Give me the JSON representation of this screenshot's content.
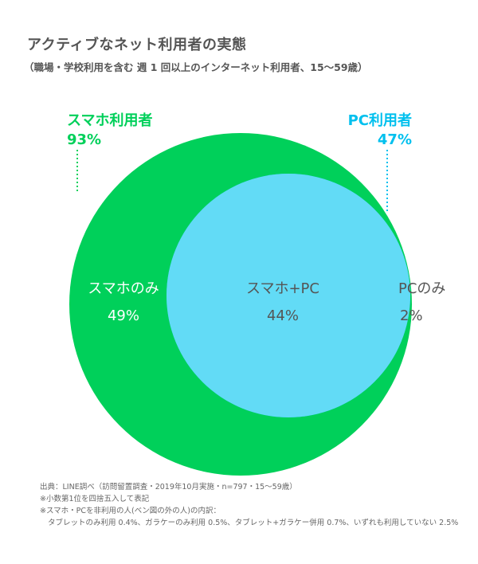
{
  "title": "アクティブなネット利用者の実態",
  "subtitle": "（職場・学校利用を含む 週 1 回以上のインターネット利用者、15〜59歳）",
  "colors": {
    "smartphone": "#00D05A",
    "pc": "#00C0EE",
    "overlap": "#62DBF6",
    "text_dark": "#555555",
    "text_light": "#ffffff"
  },
  "chart_data": {
    "type": "venn",
    "sets": [
      {
        "name": "スマホ利用者",
        "value_label": "93%",
        "value": 93
      },
      {
        "name": "PC利用者",
        "value_label": "47%",
        "value": 47
      }
    ],
    "regions": [
      {
        "id": "smartphone_only",
        "label": "スマホのみ",
        "value_label": "49%",
        "value": 49
      },
      {
        "id": "both",
        "label": "スマホ+PC",
        "value_label": "44%",
        "value": 44
      },
      {
        "id": "pc_only",
        "label": "PCのみ",
        "value_label": "2%",
        "value": 2
      }
    ]
  },
  "footnotes": [
    "出典：LINE調べ（訪問留置調査・2019年10月実施・n=797・15〜59歳）",
    "※小数第1位を四捨五入して表記",
    "※スマホ・PCを非利用の人(ベン図の外の人)の内訳：",
    "タブレットのみ利用 0.4%、ガラケーのみ利用 0.5%、タブレット+ガラケー併用 0.7%、いずれも利用していない 2.5%"
  ]
}
